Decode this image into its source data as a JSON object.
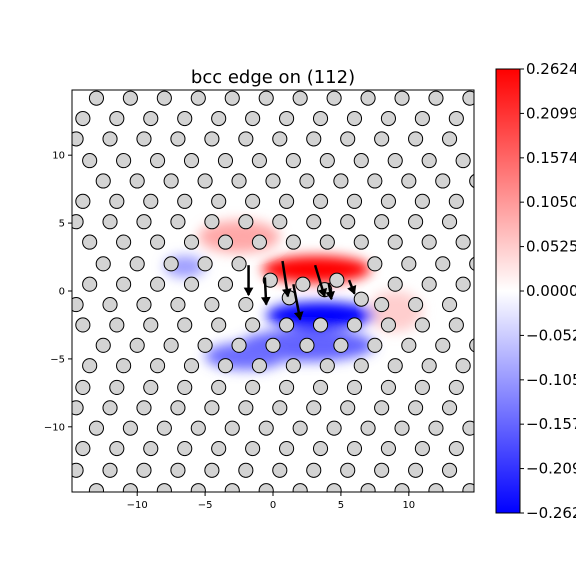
{
  "chart_data": {
    "type": "heatmap",
    "title": "bcc edge on (112)",
    "xlim": [
      -14.8,
      14.8
    ],
    "ylim": [
      -14.8,
      14.8
    ],
    "x_ticks": [
      -10,
      -5,
      0,
      5,
      10
    ],
    "y_ticks": [
      10,
      5,
      0,
      -5,
      -10
    ],
    "x_tick_labels": [
      "−10",
      "−5",
      "0",
      "5",
      "10"
    ],
    "y_tick_labels": [
      "10",
      "5",
      "0",
      "−5",
      "−10"
    ],
    "colormap": "bwr",
    "colors": {
      "min": "#0000ff",
      "mid": "#ffffff",
      "max": "#ff0000",
      "atom_fill": "#d3d3d3",
      "atom_edge": "#000000"
    },
    "colorbar": {
      "range": [
        -0.2624,
        0.2624
      ],
      "ticks": [
        0.2624,
        0.2099,
        0.1574,
        0.105,
        0.0525,
        0.0,
        -0.0525,
        -0.105,
        -0.1574,
        -0.2099,
        -0.2624
      ],
      "tick_labels": [
        "0.2624",
        "0.2099",
        "0.1574",
        "0.1050",
        "0.0525",
        "0.0000",
        "−0.0525",
        "−0.1050",
        "−0.1574",
        "−0.2099",
        "−0.2624"
      ]
    },
    "atom_lattice": {
      "rows_y": [
        14.2,
        12.7,
        11.2,
        9.6,
        8.1,
        6.6,
        5.1,
        3.6,
        2.0,
        0.5,
        -1.0,
        -2.5,
        -4.0,
        -5.5,
        -7.1,
        -8.6,
        -10.1,
        -11.6,
        -13.2,
        -14.7
      ],
      "row_offsets": [
        -13.0,
        -14.0,
        -14.5,
        -13.5,
        -12.5,
        -14.0,
        -14.5,
        -13.5,
        -12.5,
        -13.5,
        -14.5,
        -14.0,
        -12.5,
        -13.5,
        -14.0,
        -14.5,
        -13.0,
        -14.0,
        -14.5,
        -13.0
      ],
      "spacing": 2.5,
      "displaced_atoms": [
        {
          "x": -0.2,
          "y": 0.8
        },
        {
          "x": 1.2,
          "y": -0.5
        },
        {
          "x": 2.2,
          "y": 0.5
        },
        {
          "x": 3.8,
          "y": 0.1
        },
        {
          "x": 4.7,
          "y": 0.8
        },
        {
          "x": 6.5,
          "y": -0.6
        }
      ]
    },
    "density_lobes": [
      {
        "x": 3.2,
        "y": 1.6,
        "sx": 4.0,
        "sy": 1.0,
        "value": 0.26
      },
      {
        "x": -2.5,
        "y": 4.0,
        "sx": 3.0,
        "sy": 1.2,
        "value": 0.09
      },
      {
        "x": 9.0,
        "y": -1.5,
        "sx": 2.0,
        "sy": 1.5,
        "value": 0.05
      },
      {
        "x": 3.5,
        "y": -1.8,
        "sx": 4.0,
        "sy": 1.0,
        "value": -0.26
      },
      {
        "x": 2.5,
        "y": -4.0,
        "sx": 5.0,
        "sy": 1.2,
        "value": -0.16
      },
      {
        "x": -2.0,
        "y": -4.8,
        "sx": 3.0,
        "sy": 1.0,
        "value": -0.15
      },
      {
        "x": -6.5,
        "y": 1.8,
        "sx": 1.5,
        "sy": 0.8,
        "value": -0.1
      }
    ],
    "displacement_arrows": [
      {
        "x": -1.8,
        "y": 1.9,
        "dx": 0.0,
        "dy": -2.2
      },
      {
        "x": -0.6,
        "y": 1.0,
        "dx": 0.1,
        "dy": -2.0
      },
      {
        "x": 0.7,
        "y": 2.2,
        "dx": 0.4,
        "dy": -2.6
      },
      {
        "x": 1.5,
        "y": 0.5,
        "dx": 0.5,
        "dy": -2.6
      },
      {
        "x": 3.1,
        "y": 1.9,
        "dx": 0.7,
        "dy": -2.3
      },
      {
        "x": 4.1,
        "y": 0.6,
        "dx": 0.2,
        "dy": -1.2
      },
      {
        "x": 5.6,
        "y": 0.8,
        "dx": 0.4,
        "dy": -1.0
      }
    ]
  }
}
